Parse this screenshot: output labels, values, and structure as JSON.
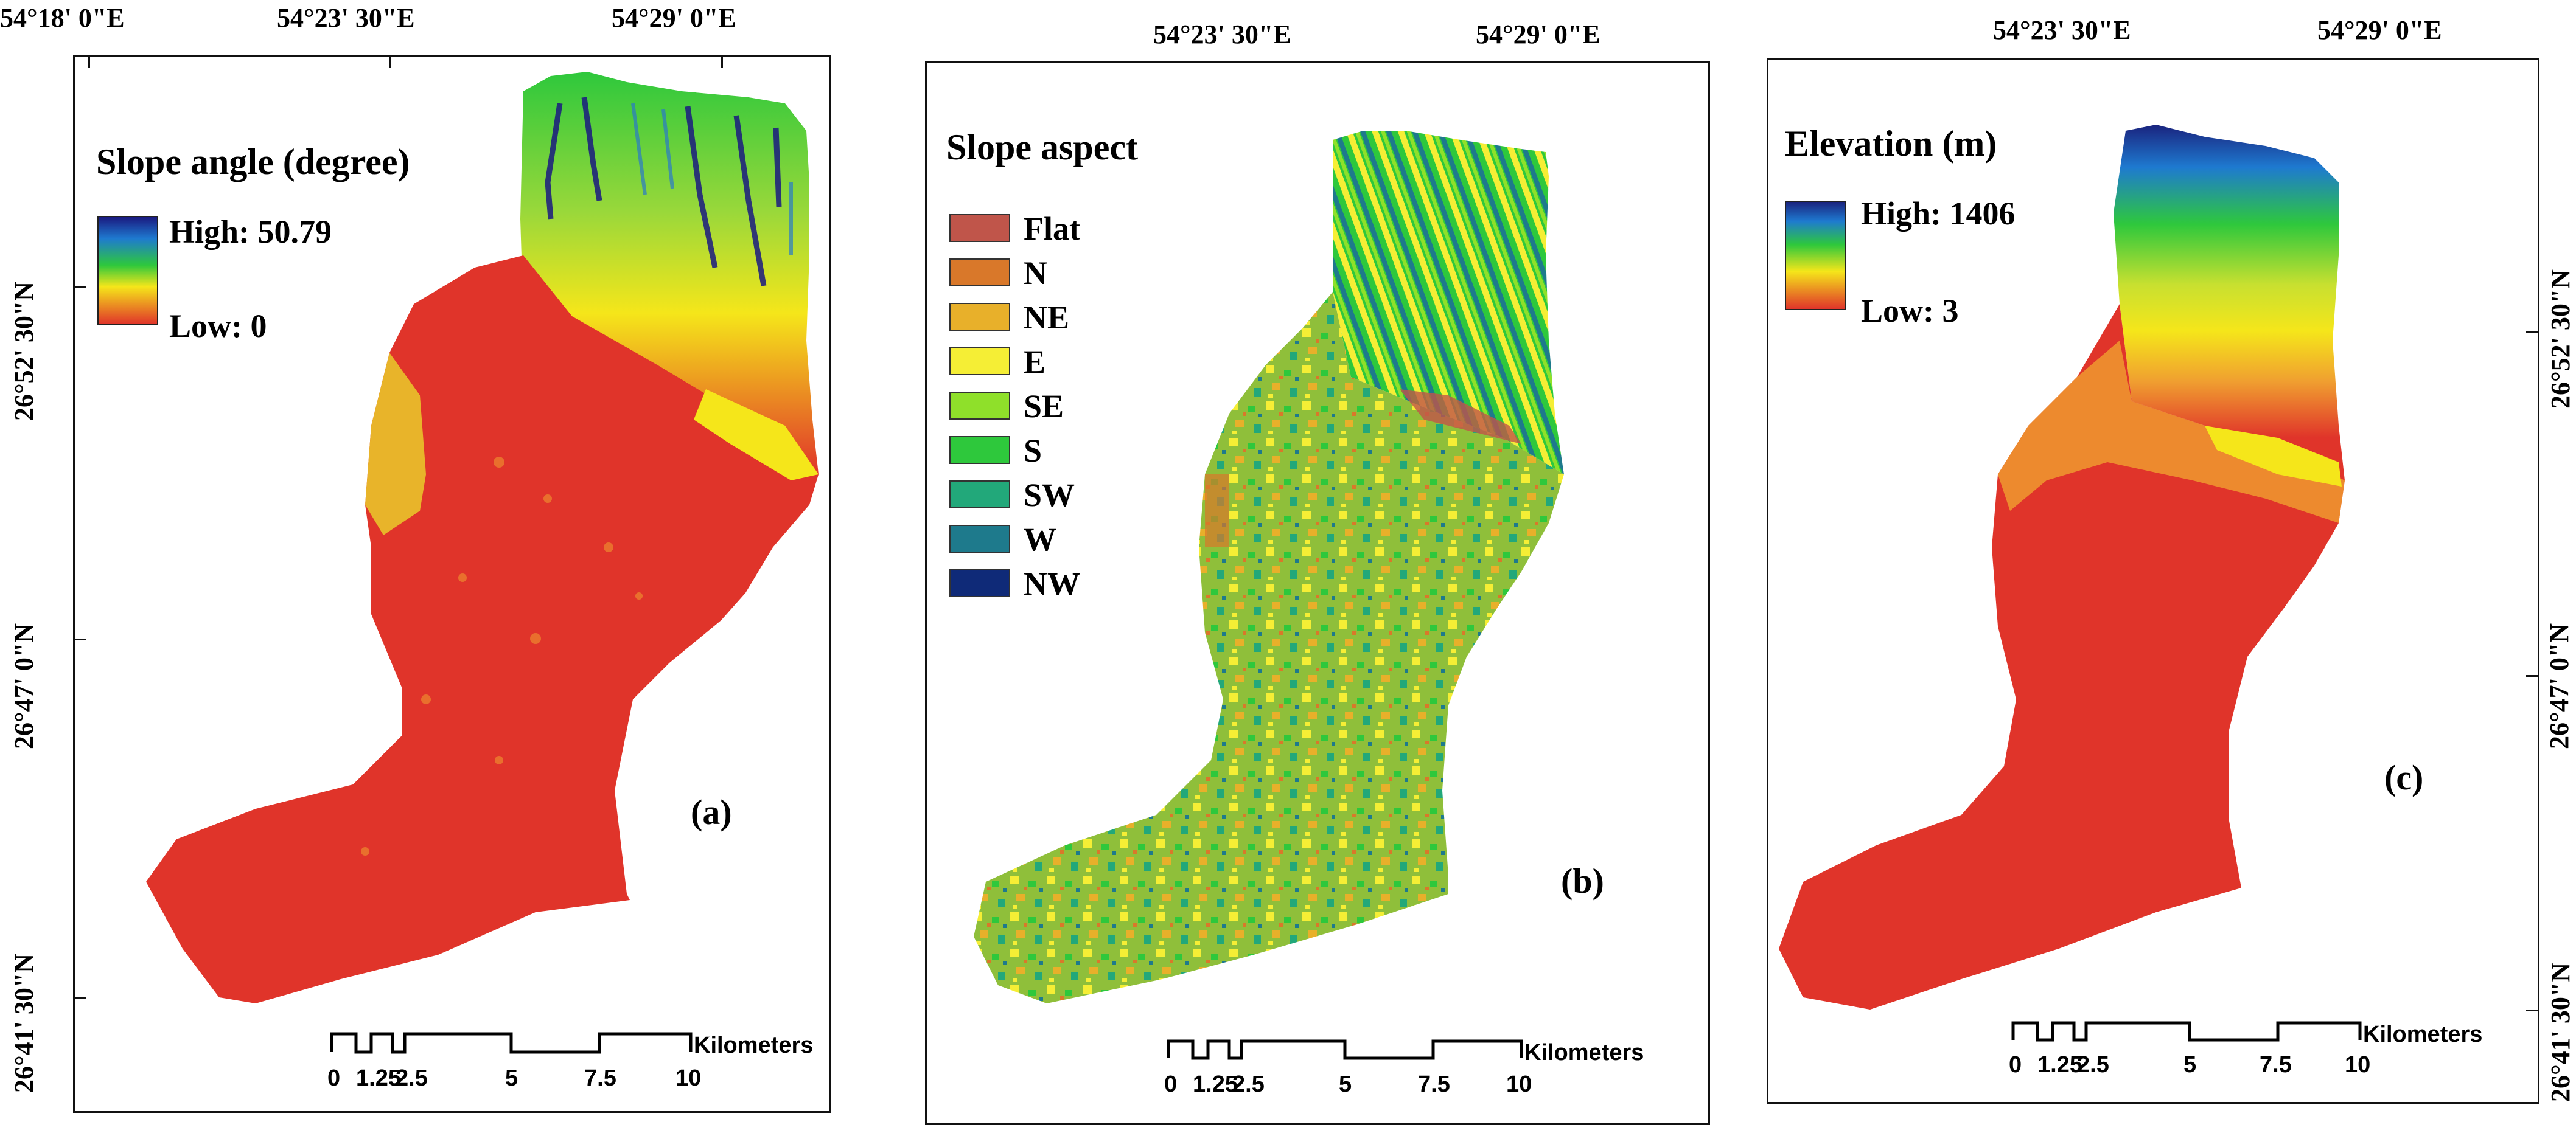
{
  "colors": {
    "slope_low": "#e0342a",
    "slope_mid": "#f5e61a",
    "slope_high_green": "#2ec83c",
    "slope_high": "#1a1a80",
    "aspect_base": "#8fbf3a",
    "elev_low": "#e0342a",
    "elev_high": "#1a237e"
  },
  "scale_bar": {
    "unit_label": "Kilometers",
    "ticks": [
      "0",
      "1.25",
      "2.5",
      "5",
      "7.5",
      "10"
    ]
  },
  "panels": [
    {
      "id": "a",
      "tag": "(a)",
      "legend_title": "Slope angle (degree)",
      "legend_high": "High: 50.79",
      "legend_low": "Low: 0",
      "top_coords": [
        "54°18' 0\"E",
        "54°23' 30\"E",
        "54°29' 0\"E"
      ],
      "side_coords": [
        "26°52' 30\"N",
        "26°47' 0\"N",
        "26°41' 30\"N"
      ]
    },
    {
      "id": "b",
      "tag": "(b)",
      "legend_title": "Slope aspect",
      "aspect_classes": [
        {
          "label": "Flat",
          "color": "#c0554a"
        },
        {
          "label": "N",
          "color": "#d9782a"
        },
        {
          "label": "NE",
          "color": "#e8b02a"
        },
        {
          "label": "E",
          "color": "#f5ee35"
        },
        {
          "label": "SE",
          "color": "#8fe02a"
        },
        {
          "label": "S",
          "color": "#2ec83c"
        },
        {
          "label": "SW",
          "color": "#22a87a"
        },
        {
          "label": "W",
          "color": "#1e7a8c"
        },
        {
          "label": "NW",
          "color": "#0f2a78"
        }
      ],
      "top_coords": [
        "54°23' 30\"E",
        "54°29' 0\"E"
      ]
    },
    {
      "id": "c",
      "tag": "(c)",
      "legend_title": "Elevation (m)",
      "legend_high": "High: 1406",
      "legend_low": "Low: 3",
      "top_coords": [
        "54°23' 30\"E",
        "54°29' 0\"E"
      ],
      "side_coords": [
        "26°52' 30\"N",
        "26°47' 0\"N",
        "26°41' 30\"N"
      ]
    }
  ]
}
